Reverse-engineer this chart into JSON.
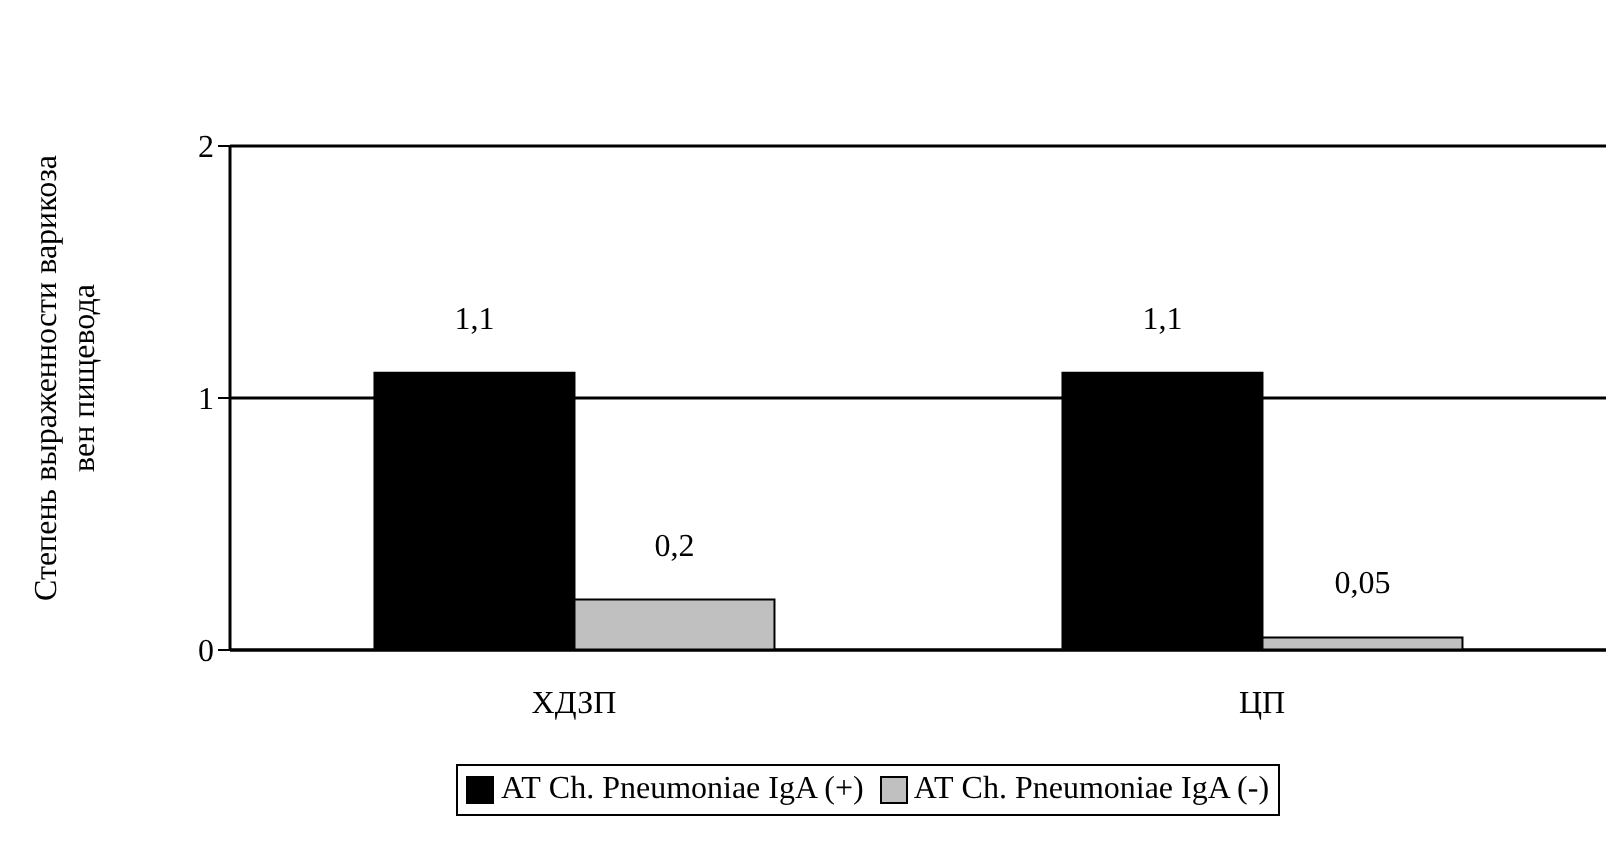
{
  "chart_data": {
    "type": "bar",
    "ylabel": "Степень выраженности варикоза вен пищевода",
    "categories": [
      "ХДЗП",
      "ЦП"
    ],
    "series": [
      {
        "name": "АТ Ch. Pneumoniae IgA (+)",
        "color": "#000000",
        "values": [
          1.1,
          1.1
        ],
        "value_labels": [
          "1,1",
          "1,1"
        ]
      },
      {
        "name": "АТ Ch. Pneumoniae IgA (-)",
        "color": "#c0c0c0",
        "values": [
          0.2,
          0.05
        ],
        "value_labels": [
          "0,2",
          "0,05"
        ]
      }
    ],
    "ylim": [
      0,
      2
    ],
    "yticks": [
      0,
      1,
      2
    ],
    "grid": "y",
    "legend": "bottom"
  }
}
